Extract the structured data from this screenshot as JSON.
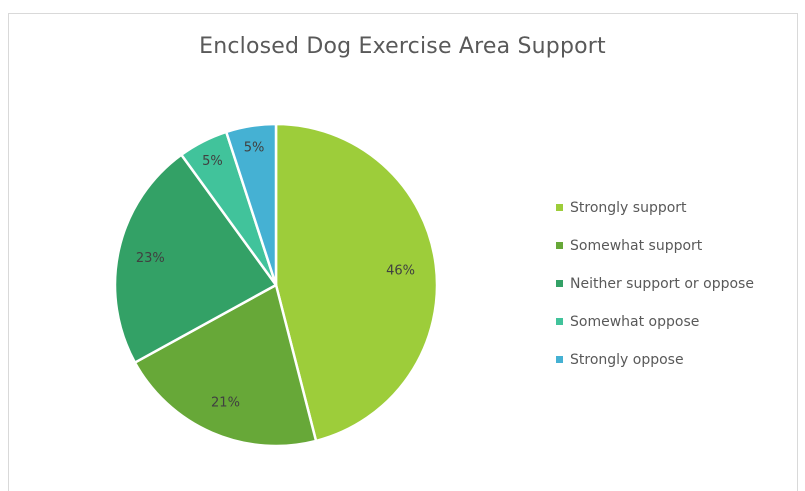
{
  "chart_data": {
    "type": "pie",
    "title": "Enclosed Dog Exercise Area Support",
    "categories": [
      "Strongly support",
      "Somewhat support",
      "Neither support or oppose",
      "Somewhat oppose",
      "Strongly oppose"
    ],
    "values": [
      46,
      21,
      23,
      5,
      5
    ],
    "labels": [
      "46%",
      "21%",
      "23%",
      "5%",
      "5%"
    ],
    "colors": [
      "#9dcd3a",
      "#67a838",
      "#33a166",
      "#41c39b",
      "#45b1d3"
    ],
    "legend_position": "right",
    "start_angle": "top (12 o'clock), clockwise"
  }
}
